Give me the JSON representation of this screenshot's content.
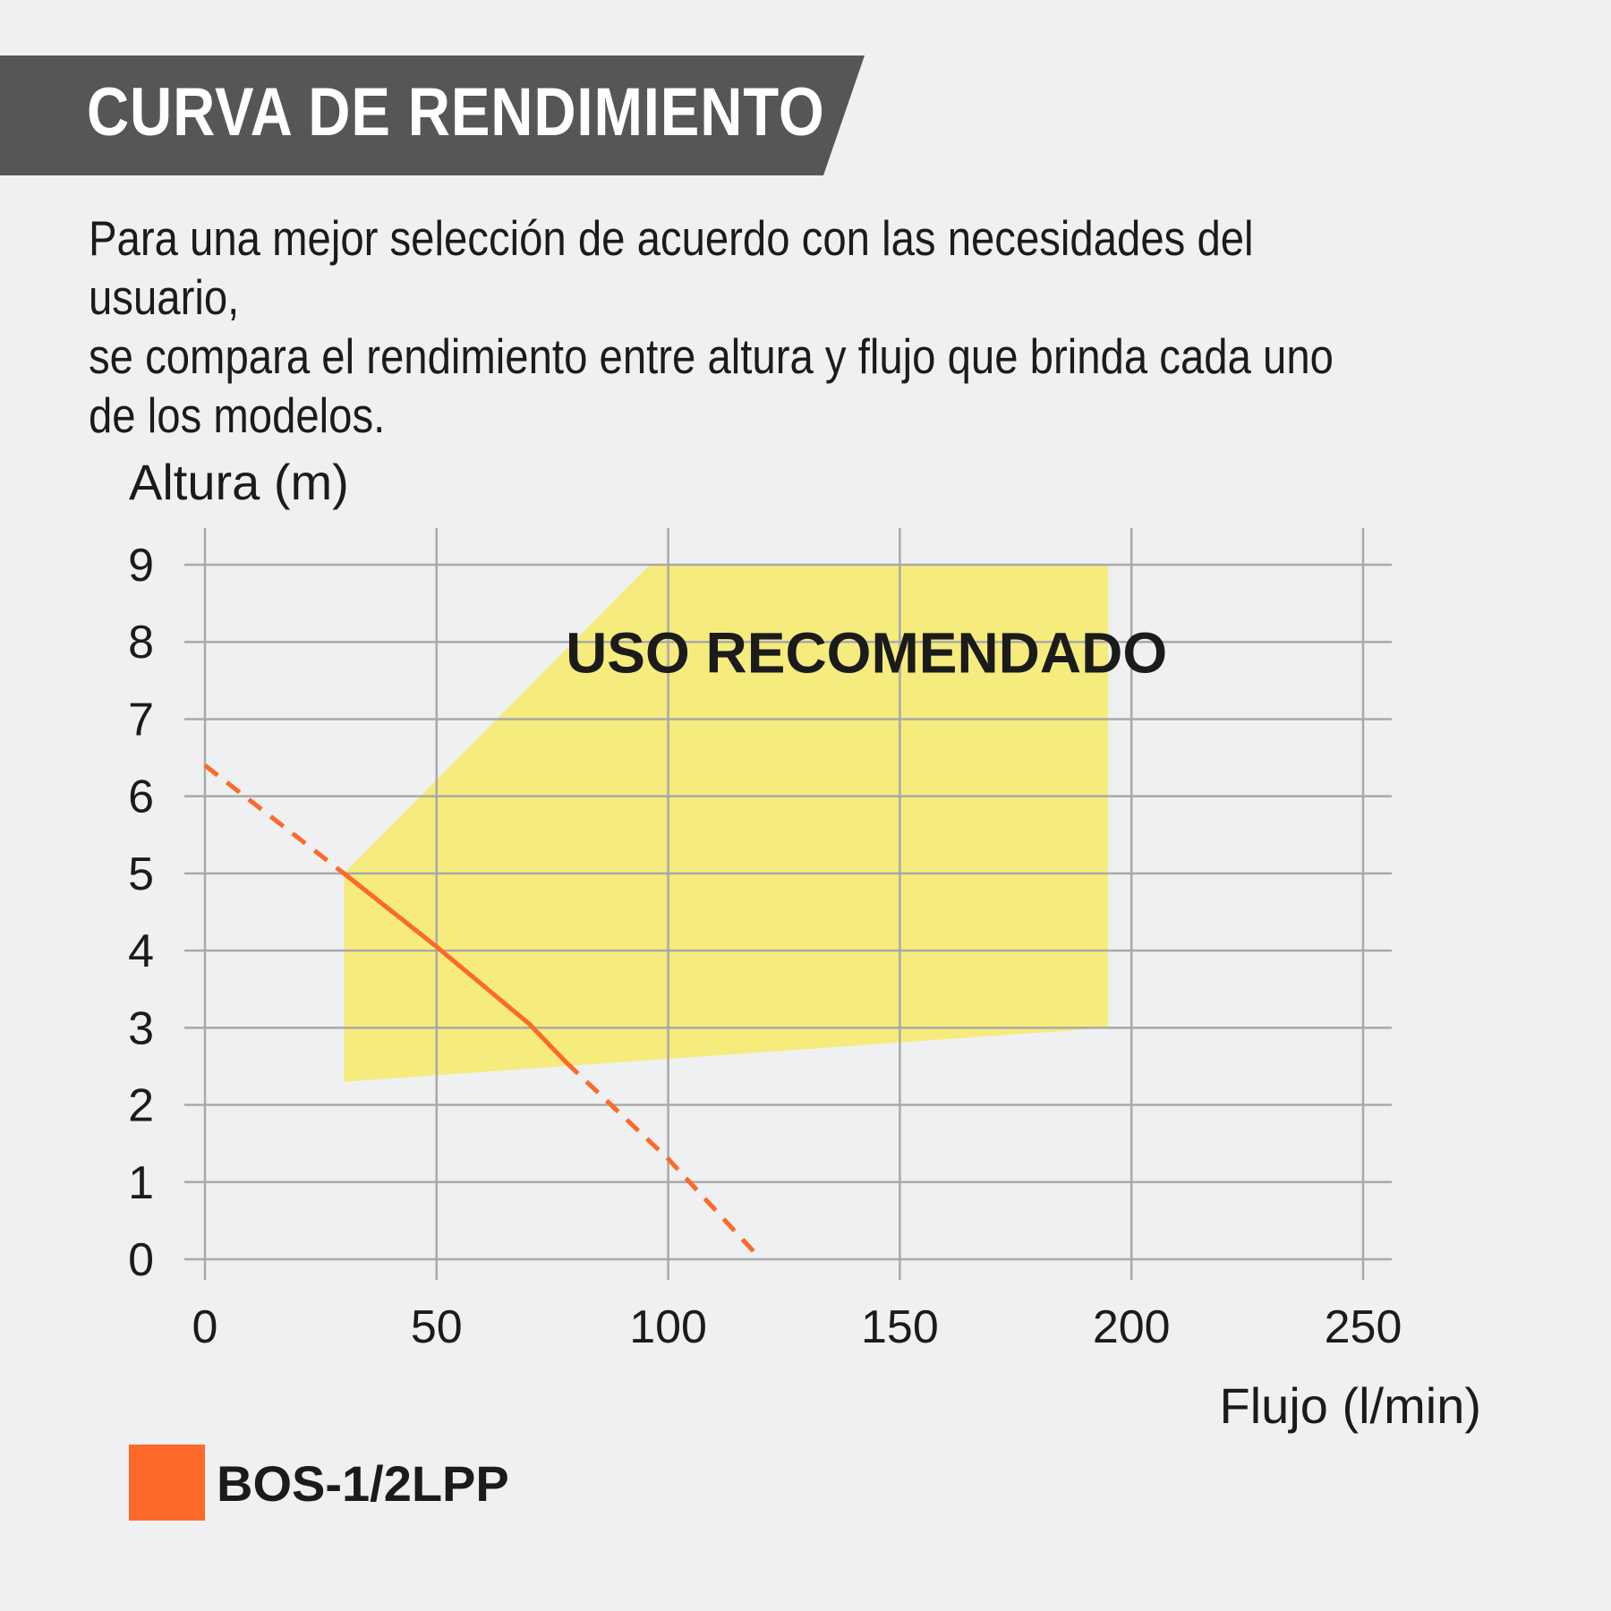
{
  "header": {
    "title": "CURVA DE RENDIMIENTO",
    "band_color": "#565656"
  },
  "intro": {
    "text": "Para una mejor selección de acuerdo con las necesidades del usuario,\nse compara el rendimiento entre altura y flujo que brinda cada uno\nde los modelos."
  },
  "chart_data": {
    "type": "line",
    "ylabel": "Altura (m)",
    "xlabel": "Flujo (l/min)",
    "xlim": [
      0,
      250
    ],
    "ylim": [
      0,
      9
    ],
    "xticks": [
      0,
      50,
      100,
      150,
      200,
      250
    ],
    "yticks": [
      0,
      1,
      2,
      3,
      4,
      5,
      6,
      7,
      8,
      9
    ],
    "grid": true,
    "recommended_zone": {
      "label": "USO RECOMENDADO",
      "color": "#f6ec7e",
      "polygon": [
        [
          30,
          2.3
        ],
        [
          30,
          5.0
        ],
        [
          96,
          9
        ],
        [
          195,
          9
        ],
        [
          195,
          3.0
        ]
      ]
    },
    "series": [
      {
        "name": "BOS-1/2LPP",
        "color": "#fd6928",
        "points": [
          [
            0,
            6.4
          ],
          [
            30,
            5.0
          ],
          [
            50,
            4.05
          ],
          [
            70,
            3.05
          ],
          [
            78,
            2.55
          ],
          [
            100,
            1.3
          ],
          [
            120,
            0.0
          ]
        ],
        "solid_range": [
          30,
          78
        ]
      }
    ],
    "legend": {
      "position": "bottom-left"
    }
  }
}
